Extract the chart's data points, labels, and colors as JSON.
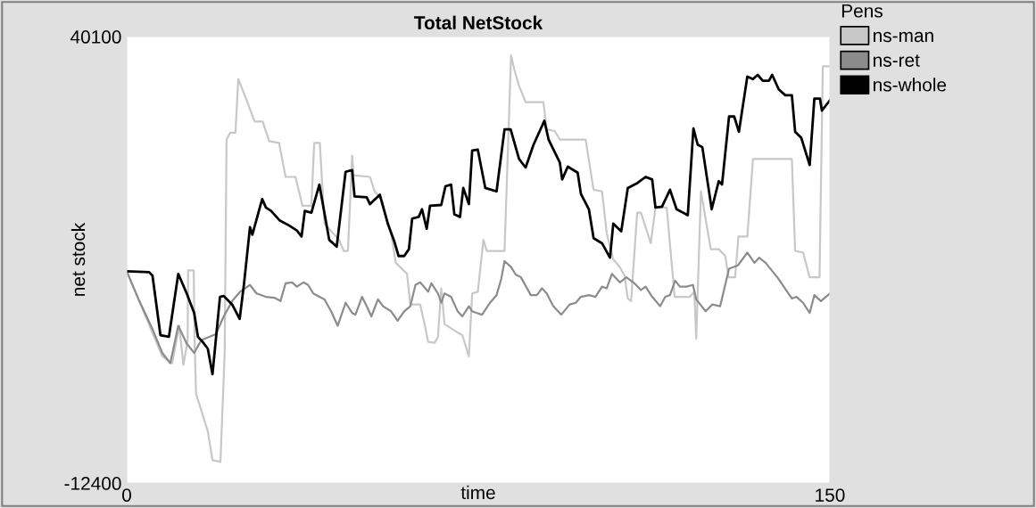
{
  "chart_data": {
    "type": "line",
    "title": "Total NetStock",
    "xlabel": "time",
    "ylabel": "net stock",
    "legend_title": "Pens",
    "legend": "top right",
    "grid": false,
    "marker": "none",
    "line_style": "solid",
    "xlim": [
      0,
      150
    ],
    "ylim": [
      -12400,
      40100
    ],
    "xticks": [
      0,
      150
    ],
    "yticks": [
      -12400,
      40100
    ],
    "series": [
      {
        "name": "ns-man",
        "color": "#c8c8c8",
        "x": [
          0,
          7.6,
          9.7,
          11.2,
          12.1,
          13.0,
          13.1,
          14.3,
          14.5,
          14.8,
          17.3,
          18.3,
          20.0,
          20.9,
          21.3,
          22.1,
          23.2,
          23.8,
          25.6,
          27.3,
          29.0,
          30.4,
          32.5,
          33.9,
          36.0,
          37.5,
          39.4,
          40.0,
          41.2,
          42.2,
          45.3,
          46.3,
          47.2,
          48.1,
          48.4,
          51.9,
          52.9,
          54.3,
          56.4,
          57.4,
          59.8,
          60.5,
          62.6,
          63.7,
          64.3,
          65.7,
          66.4,
          67.1,
          67.8,
          70.6,
          71.6,
          73.0,
          73.7,
          74.9,
          76.1,
          76.8,
          80.6,
          82.0,
          82.7,
          83.7,
          85.1,
          88.9,
          89.6,
          91.3,
          92.4,
          97.9,
          99.6,
          101.4,
          102.4,
          103.8,
          105.2,
          106.2,
          106.9,
          107.6,
          108.9,
          109.7,
          111.8,
          112.8,
          115.2,
          116.9,
          120.1,
          121.1,
          121.5,
          122.5,
          124.6,
          126.3,
          127.7,
          128.4,
          129.8,
          130.5,
          132.4,
          133.6,
          141.9,
          142.6,
          144.3,
          145.7,
          147.8,
          148.5,
          150
        ],
        "values": [
          12500,
          2500,
          1700,
          6100,
          1500,
          4400,
          12600,
          12600,
          4000,
          -1900,
          -6300,
          -9700,
          -9900,
          2900,
          28000,
          28800,
          28800,
          35100,
          32600,
          30100,
          30100,
          27800,
          27600,
          23600,
          23600,
          20200,
          20200,
          27600,
          27600,
          18100,
          16200,
          14900,
          14900,
          26100,
          23800,
          23600,
          21900,
          21000,
          17000,
          13500,
          12200,
          8600,
          8600,
          5900,
          4200,
          4100,
          4800,
          10500,
          6300,
          5300,
          5000,
          2500,
          9900,
          10100,
          16200,
          14900,
          14900,
          37900,
          36200,
          34300,
          32400,
          32400,
          29200,
          29000,
          28000,
          28000,
          22100,
          21900,
          17000,
          13900,
          13000,
          12000,
          9300,
          9000,
          19400,
          19400,
          15800,
          20000,
          20000,
          9500,
          9500,
          10100,
          4600,
          21900,
          15100,
          15100,
          14300,
          11800,
          11800,
          16600,
          16600,
          25700,
          25700,
          14900,
          14700,
          11800,
          11800,
          36600,
          36600
        ]
      },
      {
        "name": "ns-ret",
        "color": "#8c8c8c",
        "x": [
          0,
          2.7,
          5.5,
          7.6,
          9.3,
          11.0,
          12.8,
          14.4,
          15.9,
          17.6,
          19.0,
          20.7,
          22.5,
          24.2,
          26.3,
          27.7,
          29.7,
          31.5,
          32.8,
          33.9,
          35.3,
          36.3,
          37.7,
          38.7,
          39.8,
          42.2,
          43.6,
          45.0,
          46.7,
          48.1,
          48.8,
          50.2,
          51.2,
          52.2,
          53.6,
          54.7,
          56.4,
          57.8,
          59.2,
          60.5,
          61.6,
          62.6,
          63.7,
          64.3,
          65.0,
          66.4,
          67.1,
          67.8,
          69.2,
          70.6,
          71.6,
          73.0,
          73.7,
          74.7,
          75.8,
          77.5,
          78.9,
          79.9,
          80.6,
          82.0,
          83.0,
          84.1,
          86.2,
          87.5,
          88.6,
          89.6,
          91.0,
          92.7,
          94.5,
          95.8,
          96.9,
          98.6,
          100.0,
          101.4,
          102.4,
          103.5,
          105.2,
          106.6,
          108.3,
          109.7,
          110.7,
          112.1,
          113.8,
          114.9,
          115.9,
          117.0,
          118.0,
          119.4,
          120.8,
          121.5,
          123.5,
          124.9,
          126.6,
          128.5,
          130.4,
          132.4,
          133.9,
          134.9,
          136.3,
          138.8,
          141.9,
          142.9,
          144.3,
          145.7,
          146.7,
          148.1,
          150
        ],
        "values": [
          12500,
          9000,
          5700,
          2900,
          1700,
          6100,
          4000,
          2900,
          4400,
          4800,
          5100,
          7200,
          9000,
          10100,
          10900,
          9900,
          9500,
          9400,
          9000,
          11100,
          11200,
          10700,
          11200,
          10900,
          9900,
          9200,
          7800,
          6100,
          8800,
          7600,
          7400,
          9500,
          8400,
          7200,
          9200,
          8400,
          7800,
          6700,
          7800,
          8400,
          10900,
          11200,
          10500,
          10100,
          11100,
          9900,
          8800,
          9900,
          9500,
          7800,
          7200,
          8400,
          7800,
          7600,
          7400,
          8800,
          9700,
          11600,
          13700,
          13000,
          12100,
          11800,
          9700,
          9700,
          10500,
          9900,
          8400,
          7400,
          8600,
          8800,
          9500,
          9700,
          9500,
          10700,
          10500,
          12200,
          11200,
          11800,
          11100,
          10300,
          10700,
          9500,
          8400,
          9500,
          9700,
          11400,
          10700,
          10700,
          10900,
          9200,
          7800,
          8600,
          8400,
          12800,
          13200,
          14700,
          13500,
          14100,
          13500,
          11800,
          9300,
          9500,
          8800,
          7600,
          9700,
          9000,
          9900
        ]
      },
      {
        "name": "ns-whole",
        "color": "#000000",
        "x": [
          0,
          4.8,
          5.5,
          7.2,
          9.0,
          11.0,
          12.8,
          14.4,
          15.2,
          16.2,
          17.3,
          18.3,
          19.9,
          20.7,
          22.5,
          24.1,
          25.0,
          26.3,
          26.8,
          28.9,
          29.7,
          30.8,
          32.6,
          34.6,
          36.3,
          37.3,
          38.0,
          39.4,
          41.1,
          43.2,
          44.8,
          46.7,
          48.1,
          48.6,
          51.2,
          51.9,
          54.0,
          55.7,
          57.1,
          58.0,
          59.2,
          60.2,
          60.9,
          62.3,
          63.0,
          64.0,
          64.7,
          67.1,
          68.0,
          69.2,
          69.9,
          71.1,
          71.8,
          73.0,
          73.7,
          74.9,
          76.5,
          78.9,
          80.6,
          81.9,
          83.7,
          85.1,
          86.8,
          89.1,
          90.0,
          92.4,
          92.9,
          94.1,
          96.2,
          96.9,
          98.6,
          99.6,
          101.4,
          103.1,
          103.8,
          105.5,
          106.9,
          109.0,
          110.7,
          112.1,
          112.8,
          114.2,
          115.9,
          117.3,
          119.7,
          120.9,
          121.8,
          122.8,
          124.8,
          126.3,
          127.0,
          128.5,
          129.6,
          130.6,
          132.4,
          133.6,
          134.6,
          135.7,
          137.0,
          137.7,
          139.1,
          140.5,
          141.9,
          142.6,
          143.9,
          145.7,
          146.7,
          147.9,
          148.3,
          150
        ],
        "values": [
          12500,
          12400,
          12000,
          5000,
          4800,
          12200,
          9900,
          7600,
          4800,
          4200,
          3400,
          400,
          9500,
          9600,
          8600,
          6900,
          10900,
          17700,
          16800,
          21000,
          20000,
          19600,
          18500,
          17900,
          17300,
          16600,
          19600,
          19400,
          22700,
          16200,
          15400,
          24200,
          24400,
          21300,
          21200,
          20400,
          21500,
          18100,
          16000,
          14300,
          14300,
          15100,
          18700,
          18900,
          19800,
          17500,
          20200,
          20300,
          22500,
          22700,
          19200,
          18900,
          22300,
          20400,
          26700,
          26800,
          22300,
          21900,
          29200,
          29200,
          25700,
          24700,
          27400,
          30200,
          28000,
          25300,
          23300,
          24800,
          24100,
          21600,
          19800,
          16400,
          15800,
          14100,
          18100,
          17200,
          22300,
          22900,
          23600,
          23300,
          20000,
          20100,
          22100,
          19800,
          19100,
          29300,
          27400,
          27100,
          19800,
          23100,
          22700,
          30700,
          30700,
          28900,
          35400,
          35100,
          35600,
          34900,
          34900,
          35600,
          33900,
          33200,
          33200,
          28900,
          28200,
          25000,
          32800,
          32800,
          31400,
          32600
        ]
      }
    ]
  }
}
